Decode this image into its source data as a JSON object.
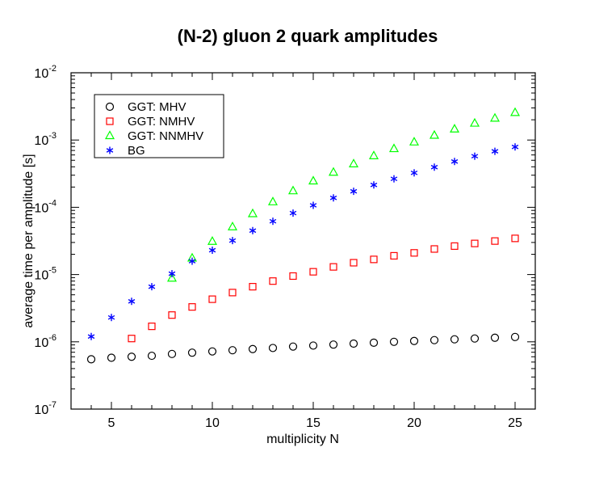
{
  "chart_data": {
    "type": "scatter",
    "title": "(N-2) gluon 2 quark amplitudes",
    "xlabel": "multiplicity N",
    "ylabel": "average time per amplitude [s]",
    "xlim": [
      3,
      26
    ],
    "ylim": [
      1e-07,
      0.01
    ],
    "yscale": "log",
    "xticks": [
      5,
      10,
      15,
      20,
      25
    ],
    "yticks": [
      {
        "base": "10",
        "exp": "-7",
        "value": 1e-07
      },
      {
        "base": "10",
        "exp": "-6",
        "value": 1e-06
      },
      {
        "base": "10",
        "exp": "-5",
        "value": 1e-05
      },
      {
        "base": "10",
        "exp": "-4",
        "value": 0.0001
      },
      {
        "base": "10",
        "exp": "-3",
        "value": 0.001
      },
      {
        "base": "10",
        "exp": "-2",
        "value": 0.01
      }
    ],
    "legend_position": "top-left",
    "series": [
      {
        "name": "GGT: MHV",
        "marker": "circle",
        "color": "#000000",
        "x": [
          4,
          5,
          6,
          7,
          8,
          9,
          10,
          11,
          12,
          13,
          14,
          15,
          16,
          17,
          18,
          19,
          20,
          21,
          22,
          23,
          24,
          25
        ],
        "y": [
          5.5e-07,
          5.8e-07,
          6e-07,
          6.2e-07,
          6.6e-07,
          6.9e-07,
          7.2e-07,
          7.5e-07,
          7.8e-07,
          8.1e-07,
          8.5e-07,
          8.8e-07,
          9.1e-07,
          9.4e-07,
          9.7e-07,
          1e-06,
          1.03e-06,
          1.06e-06,
          1.09e-06,
          1.12e-06,
          1.15e-06,
          1.18e-06
        ]
      },
      {
        "name": "GGT: NMHV",
        "marker": "square",
        "color": "#ff0000",
        "x": [
          6,
          7,
          8,
          9,
          10,
          11,
          12,
          13,
          14,
          15,
          16,
          17,
          18,
          19,
          20,
          21,
          22,
          23,
          24,
          25
        ],
        "y": [
          1.12e-06,
          1.7e-06,
          2.5e-06,
          3.3e-06,
          4.3e-06,
          5.4e-06,
          6.6e-06,
          8e-06,
          9.5e-06,
          1.1e-05,
          1.3e-05,
          1.5e-05,
          1.68e-05,
          1.9e-05,
          2.1e-05,
          2.4e-05,
          2.65e-05,
          2.9e-05,
          3.15e-05,
          3.45e-05
        ]
      },
      {
        "name": "GGT: NNMHV",
        "marker": "triangle",
        "color": "#00ff00",
        "x": [
          8,
          9,
          10,
          11,
          12,
          13,
          14,
          15,
          16,
          17,
          18,
          19,
          20,
          21,
          22,
          23,
          24,
          25
        ],
        "y": [
          8.8e-06,
          1.75e-05,
          3.1e-05,
          5.1e-05,
          8e-05,
          0.00012,
          0.000175,
          0.000245,
          0.00033,
          0.00044,
          0.00058,
          0.00074,
          0.00093,
          0.00117,
          0.00145,
          0.00177,
          0.0021,
          0.00255
        ]
      },
      {
        "name": "BG",
        "marker": "asterisk",
        "color": "#0000ff",
        "x": [
          4,
          5,
          6,
          7,
          8,
          9,
          10,
          11,
          12,
          13,
          14,
          15,
          16,
          17,
          18,
          19,
          20,
          21,
          22,
          23,
          24,
          25
        ],
        "y": [
          1.2e-06,
          2.3e-06,
          4e-06,
          6.6e-06,
          1.03e-05,
          1.58e-05,
          2.3e-05,
          3.2e-05,
          4.5e-05,
          6.2e-05,
          8.2e-05,
          0.000107,
          0.000138,
          0.000173,
          0.000215,
          0.000265,
          0.000325,
          0.000395,
          0.00048,
          0.000575,
          0.00068,
          0.00079
        ]
      }
    ]
  }
}
